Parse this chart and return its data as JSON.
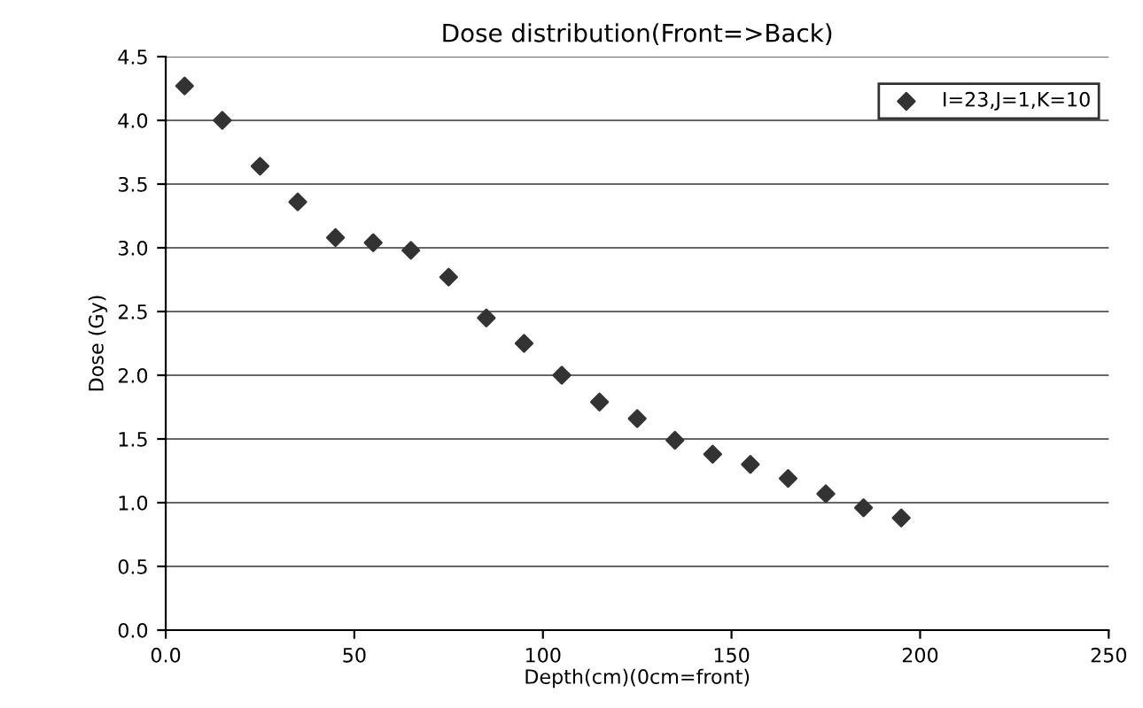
{
  "chart_data": {
    "type": "scatter",
    "title": "Dose distribution(Front=>Back)",
    "xlabel": "Depth(cm)(0cm=front)",
    "ylabel": "Dose (Gy)",
    "x": [
      5,
      15,
      25,
      35,
      45,
      55,
      65,
      75,
      85,
      95,
      105,
      115,
      125,
      135,
      145,
      155,
      165,
      175,
      185,
      195
    ],
    "series": [
      {
        "name": "I=23,J=1,K=10",
        "color": "#333333",
        "values": [
          4.27,
          4.0,
          3.64,
          3.36,
          3.08,
          3.04,
          2.98,
          2.77,
          2.45,
          2.25,
          2.0,
          1.79,
          1.66,
          1.49,
          1.38,
          1.3,
          1.19,
          1.07,
          0.96,
          0.88
        ]
      }
    ],
    "xlim": [
      0,
      250
    ],
    "xticks": [
      {
        "value": 0,
        "label": "0.0"
      },
      50,
      100,
      150,
      200,
      250
    ],
    "ylim": [
      0,
      4.5
    ],
    "yticks": [
      {
        "value": 0,
        "label": "0.0"
      },
      0.5,
      {
        "value": 1,
        "label": "1.0"
      },
      1.5,
      {
        "value": 2,
        "label": "2.0"
      },
      2.5,
      {
        "value": 3,
        "label": "3.0"
      },
      3.5,
      {
        "value": 4,
        "label": "4.0"
      },
      4.5
    ],
    "grid": "y",
    "legend": "top right",
    "marker": "diamond"
  }
}
